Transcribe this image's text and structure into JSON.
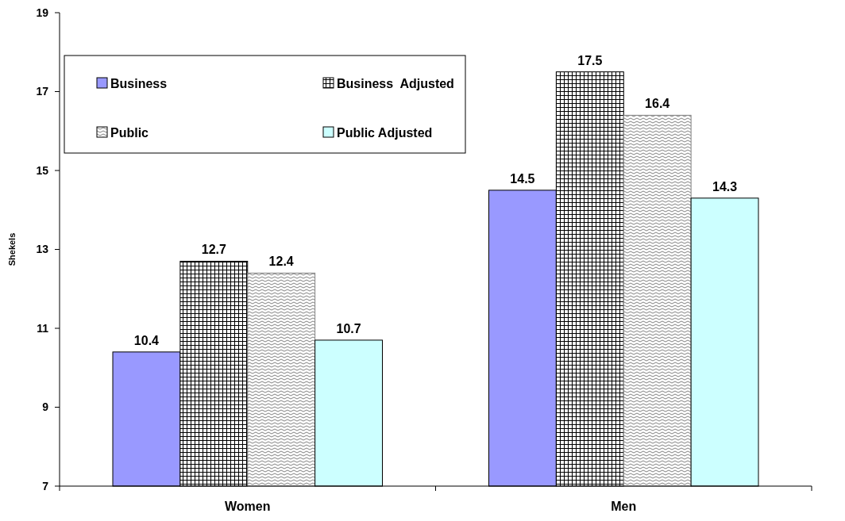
{
  "chart_data": {
    "type": "bar",
    "ylabel": "Shekels",
    "categories": [
      "Women",
      "Men"
    ],
    "series": [
      {
        "name": "Business",
        "color": "#9999ff",
        "values": [
          10.4,
          14.5
        ]
      },
      {
        "name": "Business  Adjusted",
        "color": "#000000",
        "values": [
          12.7,
          17.5
        ]
      },
      {
        "name": "Public",
        "color": "#808080",
        "values": [
          12.4,
          16.4
        ]
      },
      {
        "name": "Public Adjusted",
        "color": "#ccffff",
        "values": [
          10.7,
          14.3
        ]
      }
    ],
    "ylim": [
      7,
      19
    ],
    "yticks": [
      7,
      9,
      11,
      13,
      15,
      17,
      19
    ],
    "grid": false,
    "legend": "top left",
    "data_labels": true
  }
}
